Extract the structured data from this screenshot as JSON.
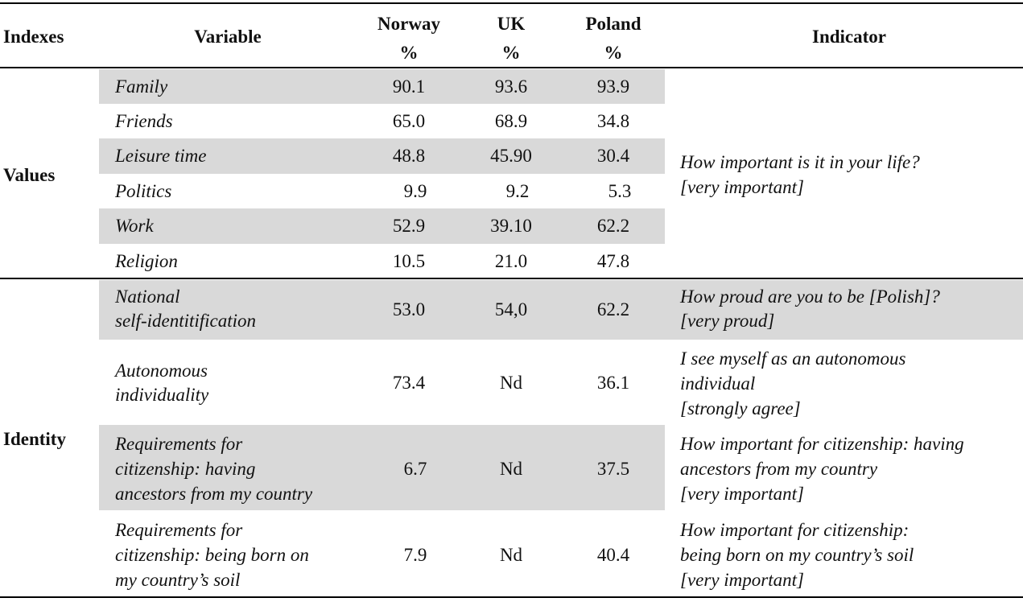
{
  "headers": {
    "indexes": "Indexes",
    "variable": "Variable",
    "norway": "Norway\n%",
    "uk": "UK\n%",
    "poland": "Poland\n%",
    "indicator": "Indicator"
  },
  "groups": {
    "values": "Values",
    "identity": "Identity"
  },
  "rows": [
    {
      "variable": "Family",
      "norway": "90.1",
      "uk": "93.6",
      "poland": "93.9"
    },
    {
      "variable": "Friends",
      "norway": "65.0",
      "uk": "68.9",
      "poland": "34.8"
    },
    {
      "variable": "Leisure time",
      "norway": "48.8",
      "uk": "45.90",
      "poland": "30.4"
    },
    {
      "variable": "Politics",
      "norway": "9.9",
      "uk": "9.2",
      "poland": "5.3"
    },
    {
      "variable": "Work",
      "norway": "52.9",
      "uk": "39.10",
      "poland": "62.2"
    },
    {
      "variable": "Religion",
      "norway": "10.5",
      "uk": "21.0",
      "poland": "47.8"
    },
    {
      "variable": "National\nself-identitification",
      "norway": "53.0",
      "uk": "54,0",
      "poland": "62.2",
      "indicator": "How proud are you to be [Polish]?\n[very proud]"
    },
    {
      "variable": "Autonomous\nindividuality",
      "norway": "73.4",
      "uk": "Nd",
      "poland": "36.1",
      "indicator": "I see myself as an autonomous\nindividual\n[strongly agree]"
    },
    {
      "variable": "Requirements for\ncitizenship: having\nancestors from my country",
      "norway": "6.7",
      "uk": "Nd",
      "poland": "37.5",
      "indicator": "How important for citizenship: having\nancestors from my country\n[very important]"
    },
    {
      "variable": "Requirements for\ncitizenship: being born on\nmy country’s soil",
      "norway": "7.9",
      "uk": "Nd",
      "poland": "40.4",
      "indicator": "How important for citizenship:\nbeing born on my country’s soil\n[very important]"
    }
  ],
  "values_indicator": "How important is it in your life?\n[very important]",
  "colors": {
    "shade": "#d9d9d9",
    "rule": "#000000"
  }
}
